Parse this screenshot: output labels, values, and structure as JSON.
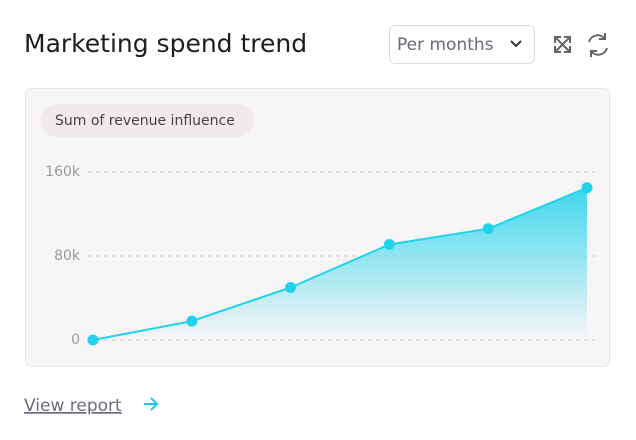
{
  "header": {
    "title": "Marketing spend trend",
    "dropdown": "Per months"
  },
  "chart_data": {
    "type": "area",
    "categories": [
      null,
      null,
      null,
      null,
      null,
      null
    ],
    "series": [
      {
        "name": "Sum of revenue influence",
        "color": "#1fd3ec",
        "values": [
          0,
          18000,
          50000,
          91000,
          106000,
          145000
        ]
      }
    ],
    "ylim": [
      0,
      160000
    ],
    "yticks": [
      0,
      {
        "value": 80000,
        "label": "80k"
      },
      {
        "value": 160000,
        "label": "160k"
      }
    ],
    "grid": true
  },
  "footer": {
    "link": "View report"
  }
}
